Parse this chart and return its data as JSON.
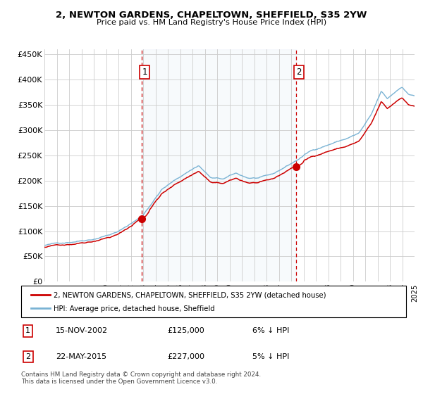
{
  "title1": "2, NEWTON GARDENS, CHAPELTOWN, SHEFFIELD, S35 2YW",
  "title2": "Price paid vs. HM Land Registry's House Price Index (HPI)",
  "legend_line1": "2, NEWTON GARDENS, CHAPELTOWN, SHEFFIELD, S35 2YW (detached house)",
  "legend_line2": "HPI: Average price, detached house, Sheffield",
  "sale1_date": "15-NOV-2002",
  "sale1_price": 125000,
  "sale1_hpi_diff": "6% ↓ HPI",
  "sale2_date": "22-MAY-2015",
  "sale2_price": 227000,
  "sale2_hpi_diff": "5% ↓ HPI",
  "footnote": "Contains HM Land Registry data © Crown copyright and database right 2024.\nThis data is licensed under the Open Government Licence v3.0.",
  "hpi_color": "#7ab3d4",
  "property_color": "#cc0000",
  "dashed_color": "#cc0000",
  "bg_color": "#dce9f5",
  "grid_color": "#cccccc",
  "ylim": [
    0,
    460000
  ],
  "yticks": [
    0,
    50000,
    100000,
    150000,
    200000,
    250000,
    300000,
    350000,
    400000,
    450000
  ],
  "start_year": 1995,
  "end_year": 2025
}
